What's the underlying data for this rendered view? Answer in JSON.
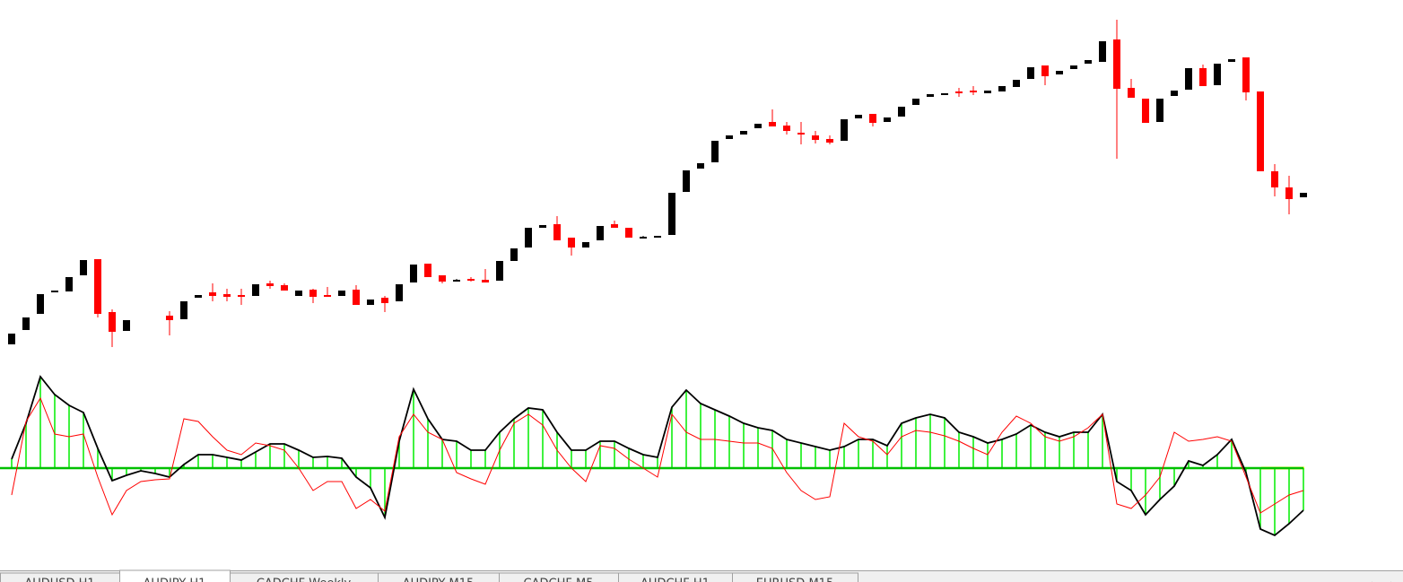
{
  "chart_data": [
    {
      "type": "candlestick",
      "ylim": [
        0,
        400
      ],
      "up_color": "#000000",
      "down_color": "#ff0000",
      "open": [
        16,
        32,
        50,
        74,
        75,
        93,
        111,
        52,
        31,
        null,
        null,
        48,
        44,
        68,
        74,
        72,
        71,
        70,
        84,
        82,
        70,
        77,
        71,
        70,
        77,
        60,
        68,
        64,
        85,
        106,
        93,
        88,
        89,
        88,
        87,
        109,
        124,
        146,
        150,
        135,
        124,
        132,
        150,
        146,
        136,
        135,
        138,
        186,
        212,
        219,
        245,
        250,
        257,
        264,
        260,
        252,
        249,
        245,
        243,
        268,
        273,
        264,
        270,
        283,
        292,
        295,
        298,
        299,
        296,
        298,
        303,
        312,
        327,
        317,
        323,
        329,
        331,
        356,
        302,
        290,
        264,
        293,
        300,
        324,
        305,
        331,
        336,
        298,
        209,
        191,
        180
      ],
      "high": [
        28,
        46,
        72,
        76,
        91,
        110,
        111,
        55,
        43,
        null,
        null,
        53,
        64,
        71,
        84,
        78,
        78,
        83,
        87,
        84,
        76,
        78,
        80,
        76,
        82,
        66,
        70,
        83,
        105,
        106,
        93,
        89,
        91,
        100,
        109,
        123,
        146,
        149,
        159,
        135,
        130,
        148,
        154,
        146,
        137,
        137,
        185,
        210,
        218,
        243,
        249,
        254,
        262,
        278,
        264,
        264,
        254,
        249,
        267,
        272,
        273,
        269,
        281,
        290,
        295,
        296,
        302,
        304,
        299,
        304,
        311,
        325,
        327,
        321,
        327,
        333,
        354,
        378,
        312,
        290,
        290,
        299,
        324,
        328,
        329,
        334,
        336,
        298,
        217,
        204,
        185
      ],
      "low": [
        16,
        32,
        50,
        74,
        75,
        93,
        46,
        13,
        31,
        null,
        null,
        26,
        44,
        68,
        64,
        64,
        60,
        70,
        78,
        76,
        70,
        62,
        69,
        70,
        60,
        60,
        52,
        64,
        85,
        91,
        84,
        87,
        86,
        85,
        87,
        109,
        124,
        146,
        132,
        115,
        124,
        132,
        146,
        135,
        135,
        135,
        138,
        186,
        212,
        219,
        245,
        250,
        257,
        259,
        250,
        239,
        240,
        239,
        243,
        268,
        259,
        264,
        270,
        283,
        292,
        295,
        292,
        294,
        296,
        298,
        303,
        312,
        305,
        317,
        323,
        329,
        331,
        223,
        291,
        263,
        264,
        293,
        300,
        304,
        305,
        331,
        288,
        209,
        181,
        161,
        180
      ],
      "close": [
        28,
        46,
        72,
        76,
        91,
        110,
        50,
        30,
        43,
        null,
        null,
        43,
        64,
        71,
        70,
        69,
        69,
        83,
        81,
        76,
        76,
        69,
        69,
        76,
        60,
        66,
        62,
        83,
        105,
        91,
        86,
        88,
        87,
        85,
        109,
        123,
        146,
        149,
        132,
        124,
        130,
        148,
        146,
        135,
        136,
        137,
        185,
        210,
        218,
        243,
        249,
        254,
        262,
        259,
        254,
        250,
        244,
        241,
        267,
        272,
        263,
        269,
        281,
        290,
        295,
        296,
        296,
        297,
        299,
        304,
        311,
        325,
        315,
        321,
        327,
        333,
        354,
        301,
        291,
        263,
        290,
        299,
        324,
        304,
        329,
        334,
        297,
        209,
        191,
        178,
        185
      ]
    },
    {
      "type": "oscillator",
      "ylim": [
        -105,
        105
      ],
      "zero_color": "#00c000",
      "series": [
        {
          "color": "#00ee00",
          "line_color": "#000000",
          "values": [
            10,
            50,
            102,
            82,
            70,
            62,
            22,
            -14,
            -8,
            -3,
            -6,
            -10,
            4,
            15,
            15,
            12,
            9,
            18,
            27,
            27,
            20,
            12,
            13,
            11,
            -10,
            -22,
            -55,
            30,
            88,
            55,
            32,
            30,
            20,
            20,
            40,
            55,
            67,
            65,
            40,
            20,
            20,
            30,
            30,
            22,
            15,
            12,
            68,
            87,
            72,
            65,
            58,
            50,
            45,
            42,
            32,
            28,
            24,
            20,
            24,
            32,
            32,
            25,
            50,
            56,
            60,
            56,
            40,
            35,
            28,
            32,
            38,
            48,
            40,
            35,
            40,
            40,
            60,
            -15,
            -25,
            -52,
            -35,
            -20,
            8,
            3,
            15,
            32,
            -5,
            -68,
            -75,
            -62,
            -47
          ]
        },
        {
          "color": "#ff0000",
          "values": [
            -30,
            52,
            78,
            38,
            35,
            38,
            -10,
            -52,
            -25,
            -15,
            -13,
            -12,
            55,
            52,
            35,
            20,
            15,
            28,
            25,
            20,
            0,
            -25,
            -15,
            -15,
            -45,
            -35,
            -48,
            35,
            60,
            40,
            32,
            -5,
            -12,
            -18,
            20,
            50,
            60,
            48,
            20,
            0,
            -15,
            25,
            22,
            10,
            0,
            -10,
            60,
            40,
            32,
            32,
            30,
            28,
            28,
            22,
            -5,
            -25,
            -35,
            -32,
            50,
            35,
            30,
            15,
            35,
            42,
            40,
            36,
            30,
            22,
            15,
            40,
            58,
            50,
            35,
            30,
            35,
            45,
            60,
            -40,
            -45,
            -30,
            -10,
            40,
            30,
            32,
            35,
            30,
            -10,
            -50,
            -40,
            -30,
            -25
          ]
        }
      ]
    }
  ],
  "tabs": [
    "AUDUSD,H1",
    "AUDJPY,H1",
    "CADCHF,Weekly",
    "AUDJPY,M15",
    "CADCHF,M5",
    "AUDCHF,H1",
    "EURUSD,M15"
  ],
  "active_tab": 1
}
